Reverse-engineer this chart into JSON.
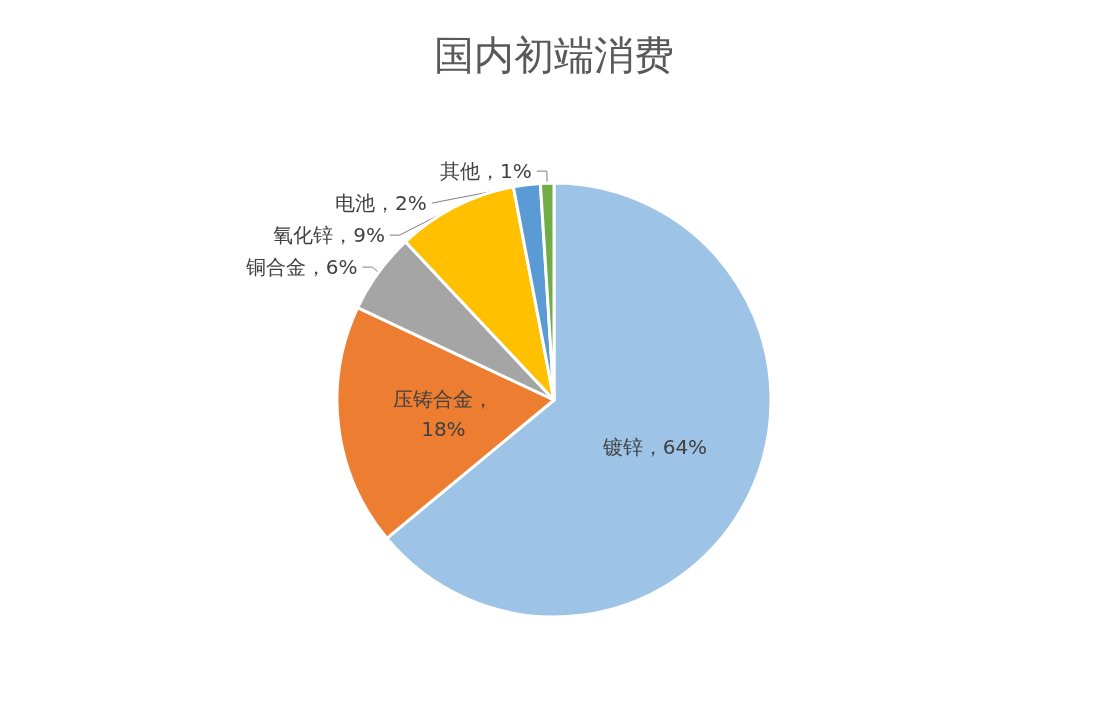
{
  "chart_data": {
    "type": "pie",
    "title": "国内初端消费",
    "categories": [
      "镀锌",
      "压铸合金",
      "铜合金",
      "氧化锌",
      "电池",
      "其他"
    ],
    "values": [
      64,
      18,
      6,
      9,
      2,
      1
    ],
    "colors": [
      "#9dc3e6",
      "#ed7d31",
      "#a5a5a5",
      "#ffc000",
      "#5b9bd5",
      "#70ad47"
    ],
    "value_labels": [
      "，64%",
      "，\n18%",
      "，6%",
      "，9%",
      "，2%",
      "，1%"
    ],
    "legend": false
  }
}
